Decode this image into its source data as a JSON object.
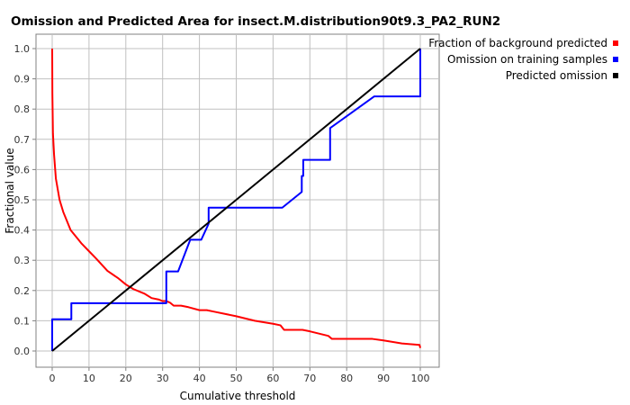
{
  "chart_data": {
    "type": "line",
    "title": "Omission and Predicted Area for insect.M.distribution90t9.3_PA2_RUN2",
    "xlabel": "Cumulative threshold",
    "ylabel": "Fractional value",
    "xlim": [
      0,
      100
    ],
    "ylim": [
      0,
      1
    ],
    "x_ticks": [
      "0",
      "10",
      "20",
      "30",
      "40",
      "50",
      "60",
      "70",
      "80",
      "90",
      "100"
    ],
    "y_ticks": [
      "0.0",
      "0.1",
      "0.2",
      "0.3",
      "0.4",
      "0.5",
      "0.6",
      "0.7",
      "0.8",
      "0.9",
      "1.0"
    ],
    "grid": true,
    "legend_position": "top-right, outside plot",
    "series": [
      {
        "name": "Fraction of background predicted",
        "color": "#ff0000",
        "x": [
          0,
          0.05,
          0.2,
          0.5,
          1,
          2,
          3,
          4,
          5,
          6,
          7,
          8,
          10,
          12,
          15,
          18,
          20,
          22,
          25,
          27,
          29,
          30,
          31,
          32,
          33,
          35,
          37,
          40,
          42,
          44,
          50,
          55,
          60,
          62,
          63,
          65,
          68,
          70,
          75,
          76,
          80,
          87,
          90,
          95,
          99.8,
          100
        ],
        "y": [
          1.0,
          0.85,
          0.72,
          0.65,
          0.57,
          0.5,
          0.46,
          0.43,
          0.4,
          0.385,
          0.37,
          0.355,
          0.33,
          0.305,
          0.265,
          0.24,
          0.22,
          0.205,
          0.19,
          0.175,
          0.17,
          0.165,
          0.165,
          0.16,
          0.15,
          0.15,
          0.145,
          0.135,
          0.135,
          0.13,
          0.115,
          0.1,
          0.09,
          0.085,
          0.07,
          0.07,
          0.07,
          0.065,
          0.05,
          0.04,
          0.04,
          0.04,
          0.035,
          0.025,
          0.02,
          0.01
        ]
      },
      {
        "name": "Omission on training samples",
        "color": "#0000ff",
        "x": [
          0,
          0,
          5.2,
          5.2,
          31,
          31,
          33.2,
          33.2,
          34.2,
          37.5,
          37.5,
          40.5,
          42.5,
          42.5,
          62.5,
          67.8,
          67.8,
          68.2,
          68.2,
          75.5,
          75.5,
          87.5,
          100,
          100
        ],
        "y": [
          0,
          0.105,
          0.105,
          0.158,
          0.158,
          0.263,
          0.263,
          0.263,
          0.263,
          0.368,
          0.368,
          0.368,
          0.421,
          0.474,
          0.474,
          0.526,
          0.579,
          0.579,
          0.632,
          0.632,
          0.737,
          0.842,
          0.842,
          1.0
        ]
      },
      {
        "name": "Predicted omission",
        "color": "#000000",
        "x": [
          0,
          100
        ],
        "y": [
          0,
          1
        ]
      }
    ]
  }
}
